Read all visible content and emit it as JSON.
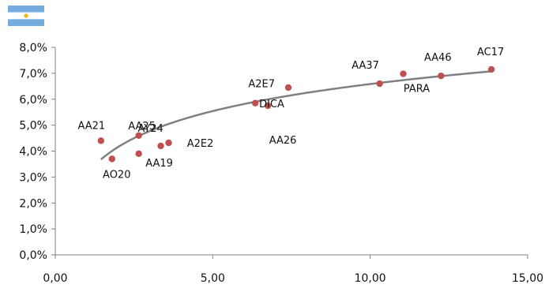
{
  "flag": {
    "icon": "argentina-flag-icon",
    "stripe_color": "#74ACDF",
    "sun_color": "#F6B40E"
  },
  "chart_data": {
    "type": "scatter",
    "title": "",
    "xlabel": "",
    "ylabel": "",
    "xlim": [
      0,
      15
    ],
    "ylim": [
      0,
      8
    ],
    "x_ticks": [
      0,
      5,
      10,
      15
    ],
    "x_tick_labels": [
      "0,00",
      "5,00",
      "10,00",
      "15,00"
    ],
    "y_ticks": [
      0,
      1,
      2,
      3,
      4,
      5,
      6,
      7,
      8
    ],
    "y_tick_labels": [
      "0,0%",
      "1,0%",
      "2,0%",
      "3,0%",
      "4,0%",
      "5,0%",
      "6,0%",
      "7,0%",
      "8,0%"
    ],
    "grid": false,
    "point_color": "#C0504D",
    "trend_color": "#808080",
    "points": [
      {
        "label": "AA21",
        "x": 1.45,
        "y": 4.4
      },
      {
        "label": "AO20",
        "x": 1.8,
        "y": 3.7
      },
      {
        "label": "AY24",
        "x": 2.65,
        "y": 4.6
      },
      {
        "label": "AA25",
        "x": 2.65,
        "y": 3.9
      },
      {
        "label": "AA19",
        "x": 3.35,
        "y": 4.2
      },
      {
        "label": "A2E2",
        "x": 3.6,
        "y": 4.32
      },
      {
        "label": "A2E7",
        "x": 6.35,
        "y": 5.85
      },
      {
        "label": "AA26",
        "x": 6.75,
        "y": 5.75
      },
      {
        "label": "DICA",
        "x": 7.4,
        "y": 6.45
      },
      {
        "label": "AA37",
        "x": 10.3,
        "y": 6.6
      },
      {
        "label": "PARA",
        "x": 11.05,
        "y": 6.98
      },
      {
        "label": "AA46",
        "x": 12.25,
        "y": 6.9
      },
      {
        "label": "AC17",
        "x": 13.85,
        "y": 7.15
      }
    ],
    "trendline": {
      "type": "log",
      "a": 3.12,
      "b": 1.505
    }
  }
}
